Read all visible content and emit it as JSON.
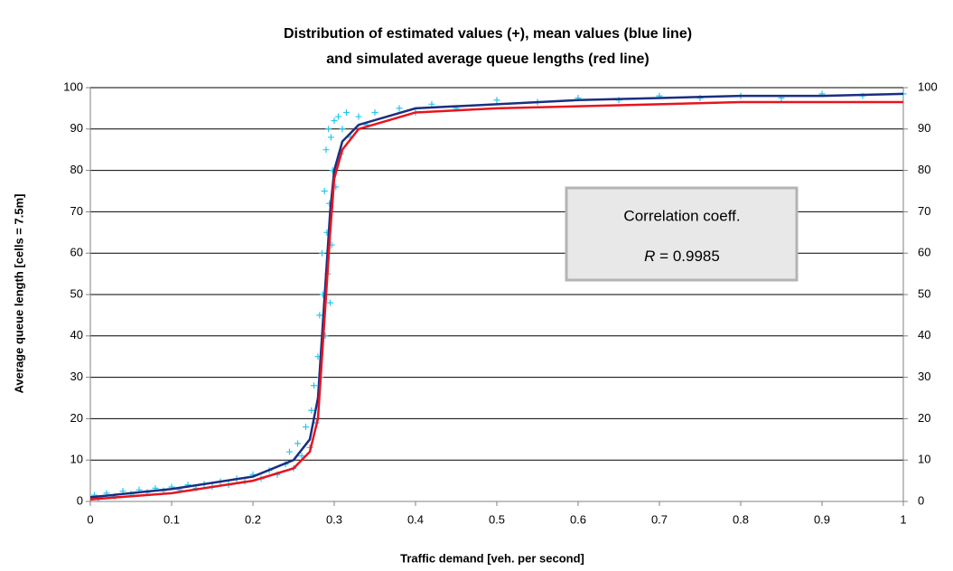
{
  "chart_data": {
    "type": "scatter",
    "title": [
      "Distribution of estimated values (+), mean values (blue line)",
      "and simulated average queue lengths (red line)"
    ],
    "x_label": "Traffic demand   [veh. per second]",
    "y_label": "Average queue length   [cells = 7.5m]",
    "annotation": {
      "text": "Correlation coeff.",
      "symbol": "R",
      "value": "= 0.9985"
    },
    "xlim": [
      0,
      1
    ],
    "xticks": [
      0,
      0.1,
      0.2,
      0.3,
      0.4,
      0.5,
      0.6,
      0.7,
      0.8,
      0.9,
      1
    ],
    "ylim": [
      0,
      100
    ],
    "yticks": [
      0,
      10,
      20,
      30,
      40,
      50,
      60,
      70,
      80,
      90,
      100
    ],
    "y2lim": [
      0,
      100
    ],
    "y2ticks": [
      0,
      10,
      20,
      30,
      40,
      50,
      60,
      70,
      80,
      90,
      100
    ],
    "grid": true,
    "series": [
      {
        "type": "scatter",
        "color": "#22c8f0",
        "x": [
          0.005,
          0.01,
          0.02,
          0.03,
          0.04,
          0.05,
          0.06,
          0.07,
          0.08,
          0.09,
          0.1,
          0.11,
          0.12,
          0.13,
          0.14,
          0.15,
          0.16,
          0.17,
          0.18,
          0.19,
          0.2,
          0.21,
          0.22,
          0.23,
          0.24,
          0.245,
          0.25,
          0.255,
          0.26,
          0.265,
          0.27,
          0.272,
          0.275,
          0.278,
          0.28,
          0.282,
          0.283,
          0.285,
          0.286,
          0.288,
          0.289,
          0.29,
          0.291,
          0.292,
          0.293,
          0.294,
          0.295,
          0.296,
          0.297,
          0.298,
          0.3,
          0.302,
          0.305,
          0.308,
          0.31,
          0.315,
          0.32,
          0.33,
          0.34,
          0.35,
          0.38,
          0.4,
          0.42,
          0.45,
          0.5,
          0.55,
          0.6,
          0.65,
          0.7,
          0.75,
          0.8,
          0.85,
          0.9,
          0.95,
          1.0
        ],
        "values": [
          1.5,
          0.8,
          2,
          1.2,
          2.5,
          1.8,
          2.8,
          2.2,
          3.2,
          2.6,
          3.5,
          2.8,
          4,
          3.2,
          4.2,
          3.6,
          4.8,
          4,
          5.5,
          4.8,
          6.5,
          5.5,
          7.5,
          6.5,
          9,
          12,
          8,
          14,
          11,
          18,
          13,
          22,
          28,
          19,
          35,
          45,
          30,
          60,
          50,
          75,
          40,
          85,
          65,
          55,
          90,
          72,
          48,
          88,
          62,
          80,
          92,
          76,
          93,
          84,
          90,
          94,
          88,
          93,
          91,
          94,
          95,
          94,
          96,
          95,
          97,
          96.5,
          97.5,
          97,
          98,
          97.5,
          98,
          97.5,
          98.5,
          98,
          98.5
        ]
      },
      {
        "type": "line",
        "color": "#1a2f80",
        "x": [
          0,
          0.1,
          0.2,
          0.25,
          0.27,
          0.28,
          0.285,
          0.29,
          0.295,
          0.3,
          0.31,
          0.33,
          0.4,
          0.5,
          0.6,
          0.7,
          0.8,
          0.9,
          1.0
        ],
        "values": [
          1,
          3,
          6,
          10,
          15,
          25,
          40,
          55,
          70,
          80,
          87,
          91,
          95,
          96,
          97,
          97.5,
          98,
          98,
          98.5
        ]
      },
      {
        "type": "line",
        "color": "#e8141e",
        "x": [
          0,
          0.1,
          0.2,
          0.25,
          0.27,
          0.28,
          0.285,
          0.29,
          0.295,
          0.3,
          0.31,
          0.33,
          0.4,
          0.5,
          0.6,
          0.7,
          0.8,
          0.9,
          1.0
        ],
        "values": [
          0.5,
          2,
          5,
          8,
          12,
          20,
          35,
          50,
          65,
          78,
          85,
          90,
          94,
          95,
          95.5,
          96,
          96.5,
          96.5,
          96.5
        ]
      }
    ]
  }
}
